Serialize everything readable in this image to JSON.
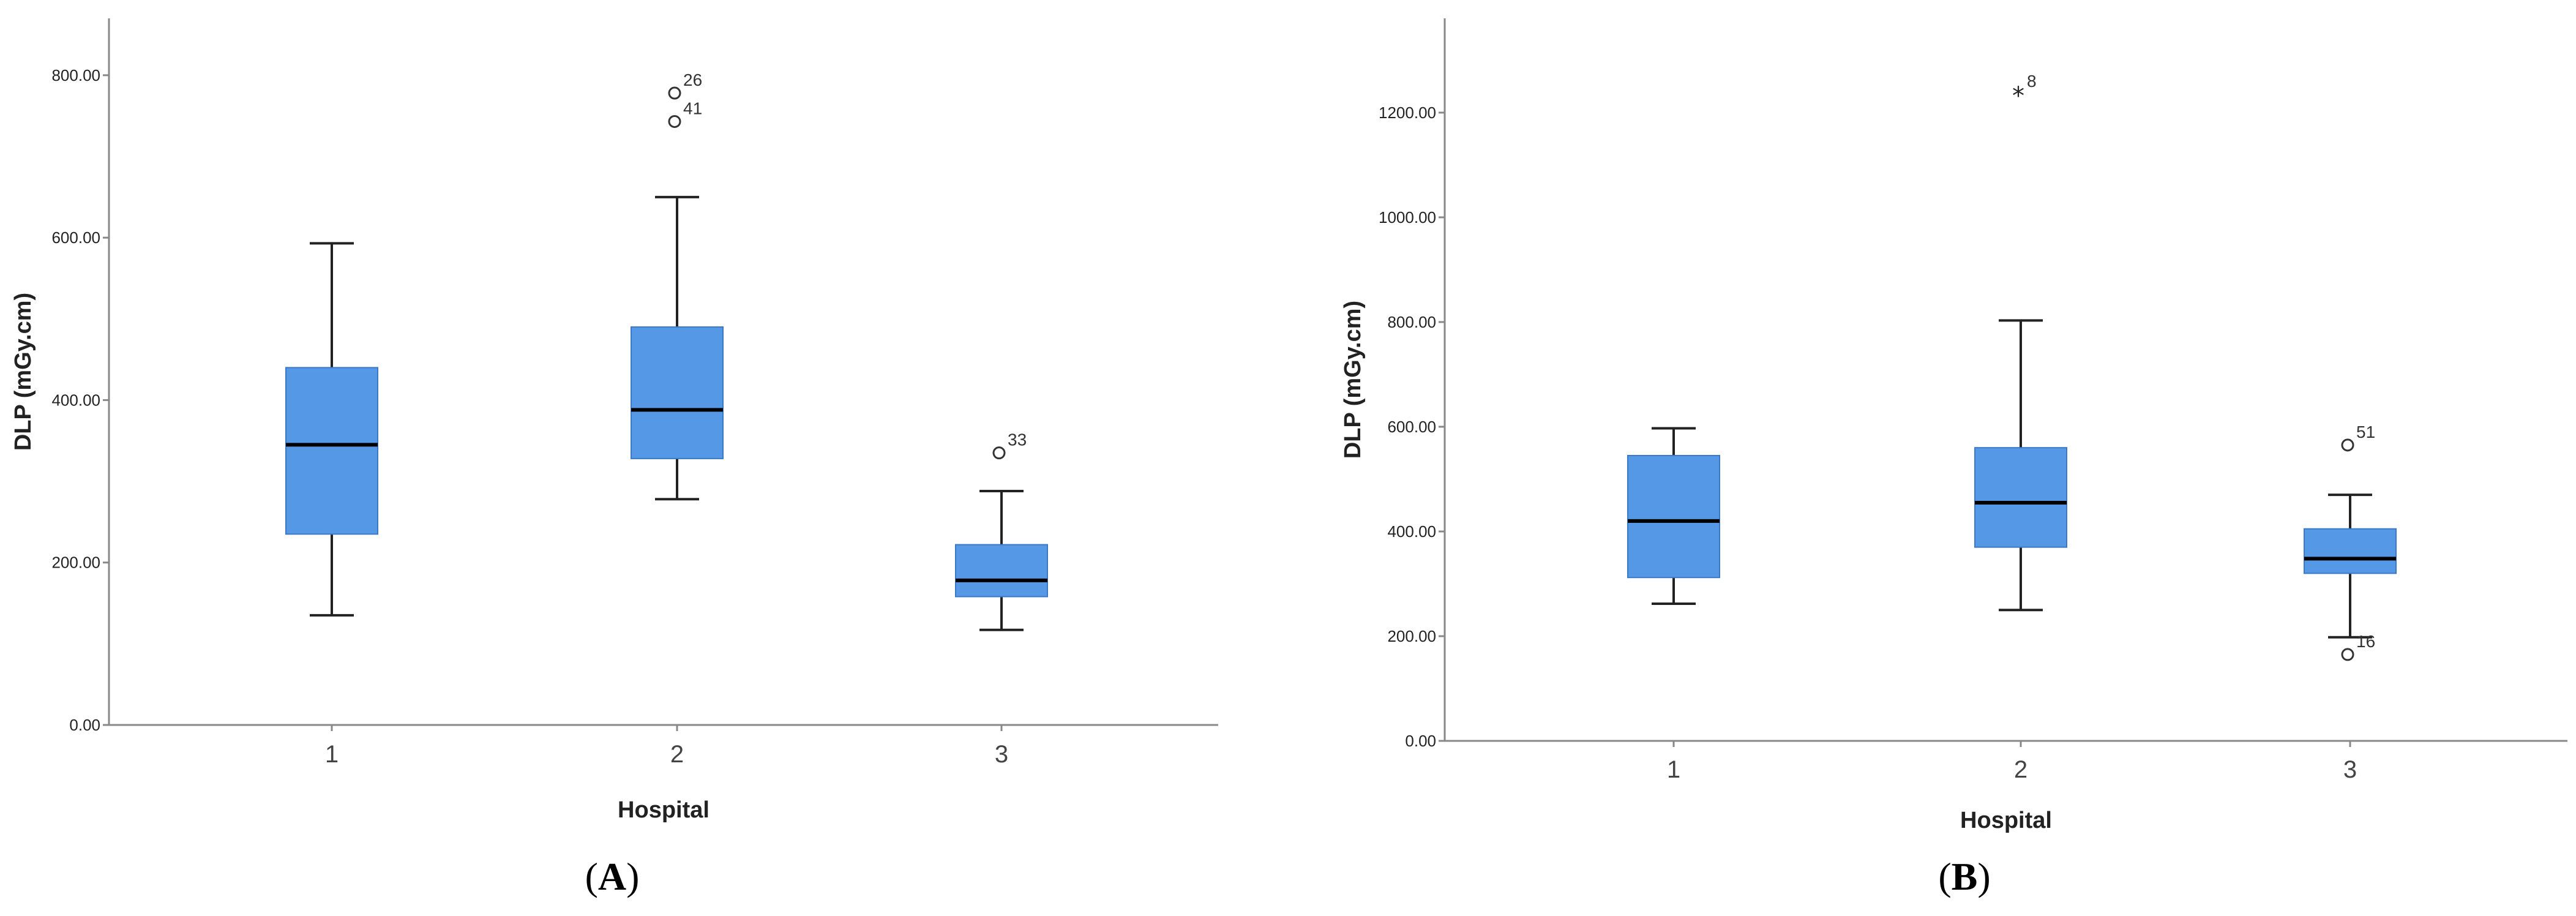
{
  "chart_data": [
    {
      "type": "boxplot",
      "panel": "A",
      "xlabel": "Hospital",
      "ylabel": "DLP (mGy.cm)",
      "ylim": [
        0,
        870
      ],
      "yticks": [
        "0.00",
        "200.00",
        "400.00",
        "600.00",
        "800.00"
      ],
      "ytick_values": [
        0,
        200,
        400,
        600,
        800
      ],
      "categories": [
        "1",
        "2",
        "3"
      ],
      "box_color": "#5599e6",
      "boxes": [
        {
          "category": "1",
          "whisker_low": 135,
          "q1": 235,
          "median": 345,
          "q3": 440,
          "whisker_high": 593,
          "outliers": []
        },
        {
          "category": "2",
          "whisker_low": 278,
          "q1": 328,
          "median": 388,
          "q3": 490,
          "whisker_high": 650,
          "outliers": [
            {
              "value": 778,
              "label": "26",
              "marker": "circle"
            },
            {
              "value": 743,
              "label": "41",
              "marker": "circle"
            }
          ]
        },
        {
          "category": "3",
          "whisker_low": 117,
          "q1": 158,
          "median": 178,
          "q3": 222,
          "whisker_high": 288,
          "outliers": [
            {
              "value": 335,
              "label": "33",
              "marker": "circle"
            }
          ]
        }
      ]
    },
    {
      "type": "boxplot",
      "panel": "B",
      "xlabel": "Hospital",
      "ylabel": "DLP (mGy.cm)",
      "ylim": [
        0,
        1380
      ],
      "yticks": [
        "0.00",
        "200.00",
        "400.00",
        "600.00",
        "800.00",
        "1000.00",
        "1200.00"
      ],
      "ytick_values": [
        0,
        200,
        400,
        600,
        800,
        1000,
        1200
      ],
      "categories": [
        "1",
        "2",
        "3"
      ],
      "box_color": "#5599e6",
      "boxes": [
        {
          "category": "1",
          "whisker_low": 262,
          "q1": 312,
          "median": 420,
          "q3": 545,
          "whisker_high": 597,
          "outliers": []
        },
        {
          "category": "2",
          "whisker_low": 250,
          "q1": 370,
          "median": 455,
          "q3": 560,
          "whisker_high": 803,
          "outliers": [
            {
              "value": 1235,
              "label": "8",
              "marker": "star"
            }
          ]
        },
        {
          "category": "3",
          "whisker_low": 198,
          "q1": 320,
          "median": 348,
          "q3": 405,
          "whisker_high": 470,
          "outliers": [
            {
              "value": 565,
              "label": "51",
              "marker": "circle"
            },
            {
              "value": 165,
              "label": "16",
              "marker": "circle"
            }
          ]
        }
      ]
    }
  ],
  "panel_labels": {
    "a": {
      "open": "(",
      "letter": "A",
      "close": ")"
    },
    "b": {
      "open": "(",
      "letter": "B",
      "close": ")"
    }
  }
}
